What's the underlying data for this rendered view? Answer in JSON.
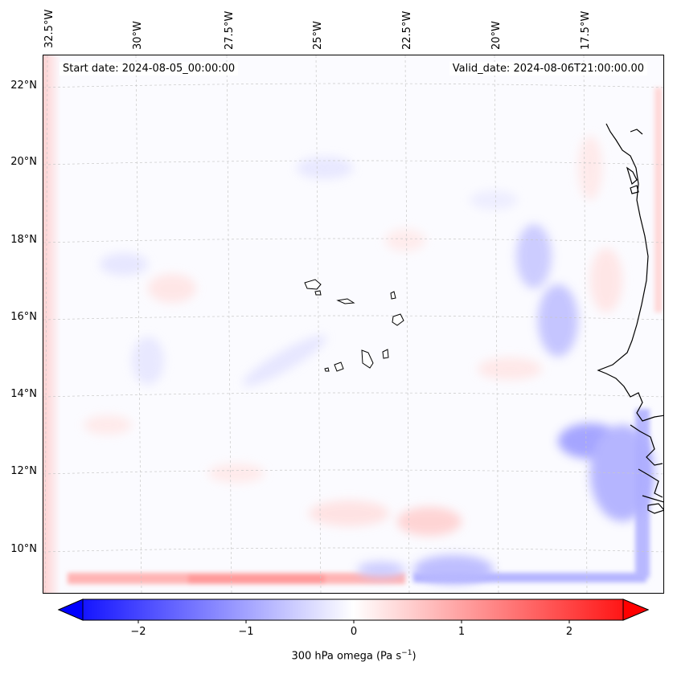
{
  "map": {
    "start_label": "Start date: 2024-08-05_00:00:00",
    "valid_label": "Valid_date: 2024-08-06T21:00:00.00",
    "longitude_labels": [
      "32.5°W",
      "30°W",
      "27.5°W",
      "25°W",
      "22.5°W",
      "20°W",
      "17.5°W"
    ],
    "latitude_labels": [
      "22°N",
      "20°N",
      "18°N",
      "16°N",
      "14°N",
      "12°N",
      "10°N"
    ],
    "field_colors": {
      "negative": "#0000ff",
      "neutral": "#ffffff",
      "positive": "#ff0000"
    }
  },
  "colorbar": {
    "ticks": [
      "−2",
      "−1",
      "0",
      "1",
      "2"
    ],
    "title": "300 hPa omega (Pa s",
    "title_sup": "−1",
    "title_end": ")",
    "range": [
      -2.7,
      2.7
    ]
  }
}
